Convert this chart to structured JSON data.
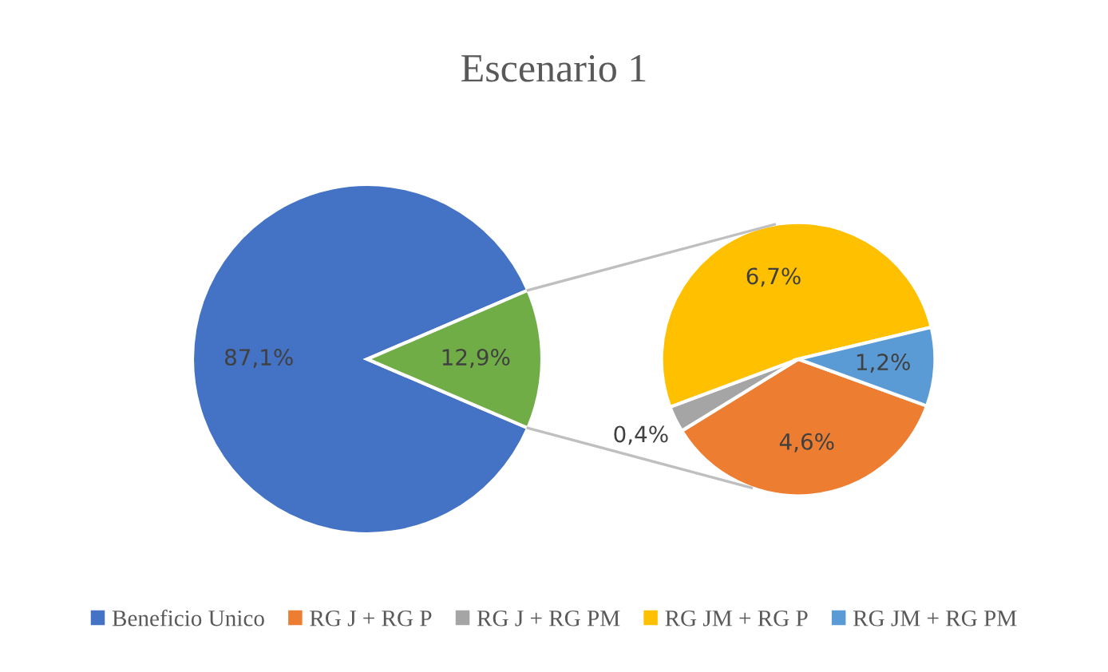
{
  "chart_data": [
    {
      "type": "pie",
      "title": "Escenario 1",
      "categories": [
        "Beneficio Unico",
        null
      ],
      "values": [
        87.1,
        12.9
      ],
      "colors": [
        "#4472c4",
        "#70ad47"
      ],
      "value_labels": [
        "87,1%",
        "12,9%"
      ],
      "legend": "bottom"
    },
    {
      "type": "pie",
      "categories": [
        "RG J + RG P",
        "RG J + RG PM",
        "RG JM + RG P",
        "RG JM + RG PM"
      ],
      "values": [
        4.6,
        0.4,
        6.7,
        1.2
      ],
      "colors": [
        "#ed7d31",
        "#a5a5a5",
        "#ffc000",
        "#5b9bd5"
      ],
      "value_labels": [
        "4,6%",
        "0,4%",
        "6,7%",
        "1,2%"
      ],
      "legend": "bottom"
    }
  ]
}
